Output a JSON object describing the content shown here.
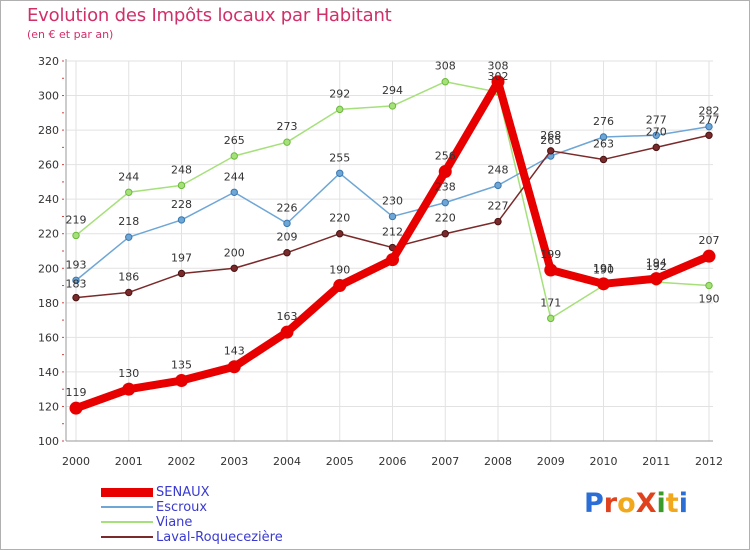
{
  "title": "Evolution des Impôts locaux par Habitant",
  "subtitle": "(en € et par an)",
  "logo": {
    "text": "ProXiti",
    "colors": [
      "#2b6fd6",
      "#e0421e",
      "#f2a81c",
      "#e0421e",
      "#3a9a2a",
      "#f2a81c",
      "#2b6fd6"
    ]
  },
  "chart_data": {
    "type": "line",
    "x": [
      "2000",
      "2001",
      "2002",
      "2003",
      "2004",
      "2005",
      "2006",
      "2007",
      "2008",
      "2009",
      "2010",
      "2011",
      "2012"
    ],
    "ylim": [
      100,
      320
    ],
    "yticks": [
      "100",
      "120",
      "140",
      "160",
      "180",
      "200",
      "220",
      "240",
      "260",
      "280",
      "300",
      "320"
    ],
    "grid": true,
    "legend_position": "bottom-left",
    "series": [
      {
        "name": "SENAUX",
        "color": "#e80000",
        "values": [
          119,
          130,
          135,
          143,
          163,
          190,
          205,
          256,
          308,
          199,
          191,
          194,
          207
        ],
        "labels": [
          "119",
          "130",
          "135",
          "143",
          "163",
          "190",
          "",
          "256",
          "308",
          "199",
          "191",
          "194",
          "207"
        ]
      },
      {
        "name": "Escroux",
        "color": "#6ea6d6",
        "values": [
          193,
          218,
          228,
          244,
          226,
          255,
          230,
          238,
          248,
          265,
          276,
          277,
          282
        ],
        "labels": [
          "193",
          "218",
          "228",
          "244",
          "226",
          "255",
          "230",
          "238",
          "248",
          "265",
          "276",
          "277",
          "282"
        ]
      },
      {
        "name": "Viane",
        "color": "#a6e07a",
        "values": [
          219,
          244,
          248,
          265,
          273,
          292,
          294,
          308,
          302,
          171,
          190,
          192,
          190
        ],
        "labels": [
          "219",
          "244",
          "248",
          "265",
          "273",
          "292",
          "294",
          "308",
          "302",
          "171",
          "190",
          "192",
          "190"
        ]
      },
      {
        "name": "Laval-Roquecezière",
        "color": "#7a2a2a",
        "values": [
          183,
          186,
          197,
          200,
          209,
          220,
          212,
          220,
          227,
          268,
          263,
          270,
          277
        ],
        "labels": [
          "183",
          "186",
          "197",
          "200",
          "209",
          "220",
          "212",
          "220",
          "227",
          "268",
          "263",
          "270",
          "277"
        ]
      }
    ]
  }
}
